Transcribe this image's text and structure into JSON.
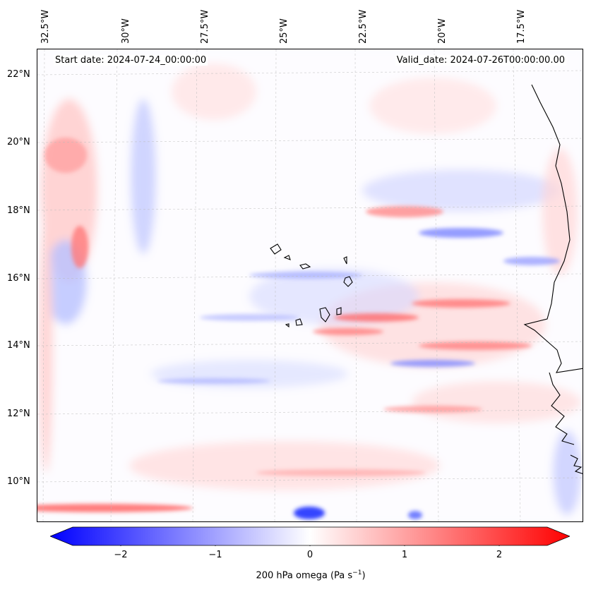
{
  "header": {
    "start_date": "Start date: 2024-07-24_00:00:00",
    "valid_date": "Valid_date: 2024-07-26T00:00:00.00"
  },
  "axes": {
    "lon_labels": [
      "32.5°W",
      "30°W",
      "27.5°W",
      "25°W",
      "22.5°W",
      "20°W",
      "17.5°W"
    ],
    "lat_labels": [
      "22°N",
      "20°N",
      "18°N",
      "16°N",
      "14°N",
      "12°N",
      "10°N"
    ]
  },
  "colorbar": {
    "tick_labels": [
      "−2",
      "−1",
      "0",
      "1",
      "2"
    ],
    "range": [
      -2.5,
      2.5
    ],
    "colors": {
      "negative": "#0000ff",
      "zero": "#ffffff",
      "positive": "#ff0000"
    }
  },
  "field": {
    "label_prefix": "200 hPa omega (Pa s",
    "label_exp": "−1",
    "label_suffix": ")"
  }
}
